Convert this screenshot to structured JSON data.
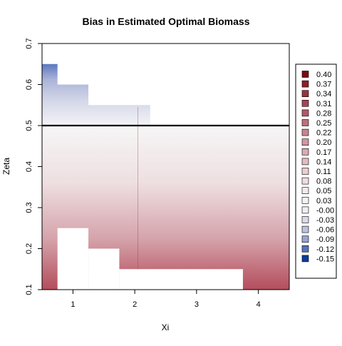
{
  "chart_data": {
    "type": "heatmap",
    "title": "Bias in Estimated Optimal Biomass",
    "xlabel": "Xi",
    "ylabel": "Zeta",
    "xlim": [
      0.5,
      4.5
    ],
    "ylim": [
      0.1,
      0.7
    ],
    "x_ticks": [
      "1",
      "2",
      "3",
      "4"
    ],
    "y_ticks": [
      "0.1",
      "0.2",
      "0.3",
      "0.4",
      "0.5",
      "0.6",
      "0.7"
    ],
    "reference_line": {
      "zeta": 0.5
    },
    "legend": {
      "placement": "right",
      "entries": [
        {
          "label": "0.40",
          "color": "#7a0a14"
        },
        {
          "label": "0.37",
          "color": "#8d1f2a"
        },
        {
          "label": "0.34",
          "color": "#9a3341"
        },
        {
          "label": "0.31",
          "color": "#a64554"
        },
        {
          "label": "0.28",
          "color": "#b25a67"
        },
        {
          "label": "0.25",
          "color": "#be6f7b"
        },
        {
          "label": "0.22",
          "color": "#c8848e"
        },
        {
          "label": "0.20",
          "color": "#d197a0"
        },
        {
          "label": "0.17",
          "color": "#daaab1"
        },
        {
          "label": "0.14",
          "color": "#e2bcc2"
        },
        {
          "label": "0.11",
          "color": "#e9ced2"
        },
        {
          "label": "0.08",
          "color": "#efdde0"
        },
        {
          "label": "0.05",
          "color": "#f4eaeb"
        },
        {
          "label": "0.03",
          "color": "#f6f2f3"
        },
        {
          "label": "-0.00",
          "color": "#eeeef3"
        },
        {
          "label": "-0.03",
          "color": "#d9dbea"
        },
        {
          "label": "-0.06",
          "color": "#bcc2de"
        },
        {
          "label": "-0.09",
          "color": "#98a4d0"
        },
        {
          "label": "-0.12",
          "color": "#5672bc"
        },
        {
          "label": "-0.15",
          "color": "#0b3b9a"
        }
      ]
    },
    "regions": [
      {
        "bias_range": [
          0.0,
          0.4
        ],
        "zeta_range": [
          0.1,
          0.5
        ],
        "xi_range": [
          0.5,
          4.5
        ],
        "gradient": "bias increases as zeta decreases"
      },
      {
        "bias_range": [
          -0.12,
          0.0
        ],
        "zeta_range": [
          0.5,
          0.65
        ],
        "xi_range": [
          0.5,
          2.25
        ],
        "gradient": "bias decreases as zeta increases"
      }
    ],
    "missing_cells": [
      {
        "xi": [
          0.75,
          1.25
        ],
        "zeta": [
          0.1,
          0.25
        ]
      },
      {
        "xi": [
          1.25,
          1.75
        ],
        "zeta": [
          0.1,
          0.2
        ]
      },
      {
        "xi": [
          1.75,
          3.75
        ],
        "zeta": [
          0.1,
          0.15
        ]
      }
    ]
  }
}
